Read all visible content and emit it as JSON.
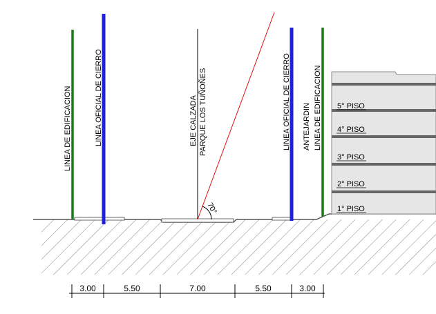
{
  "labels": {
    "left_building_line": "LINEA DE EDIFICACION",
    "left_closure_line": "LINEA OFICIAL DE CIERRO",
    "street_axis_line1": "EJE CALZADA",
    "street_axis_line2": "PARQUE LOS TUÑOÑES",
    "right_closure_line": "LINEA OFICIAL DE CIERRO",
    "front_garden": "ANTEJARDIN",
    "right_building_line": "LINEA DE EDIFICACION",
    "angle": "70°"
  },
  "floors": [
    "1° PISO",
    "2° PISO",
    "3° PISO",
    "4° PISO",
    "5° PISO"
  ],
  "dimensions": [
    "3.00",
    "5.50",
    "7.00",
    "5.50",
    "3.00"
  ],
  "colors": {
    "building_line": "#1a7a1a",
    "closure_line": "#1f1fe0",
    "rasante": "#e01010",
    "building_fill": "#e6e6e6",
    "floor_slab": "#666666",
    "hatch": "#555555"
  }
}
